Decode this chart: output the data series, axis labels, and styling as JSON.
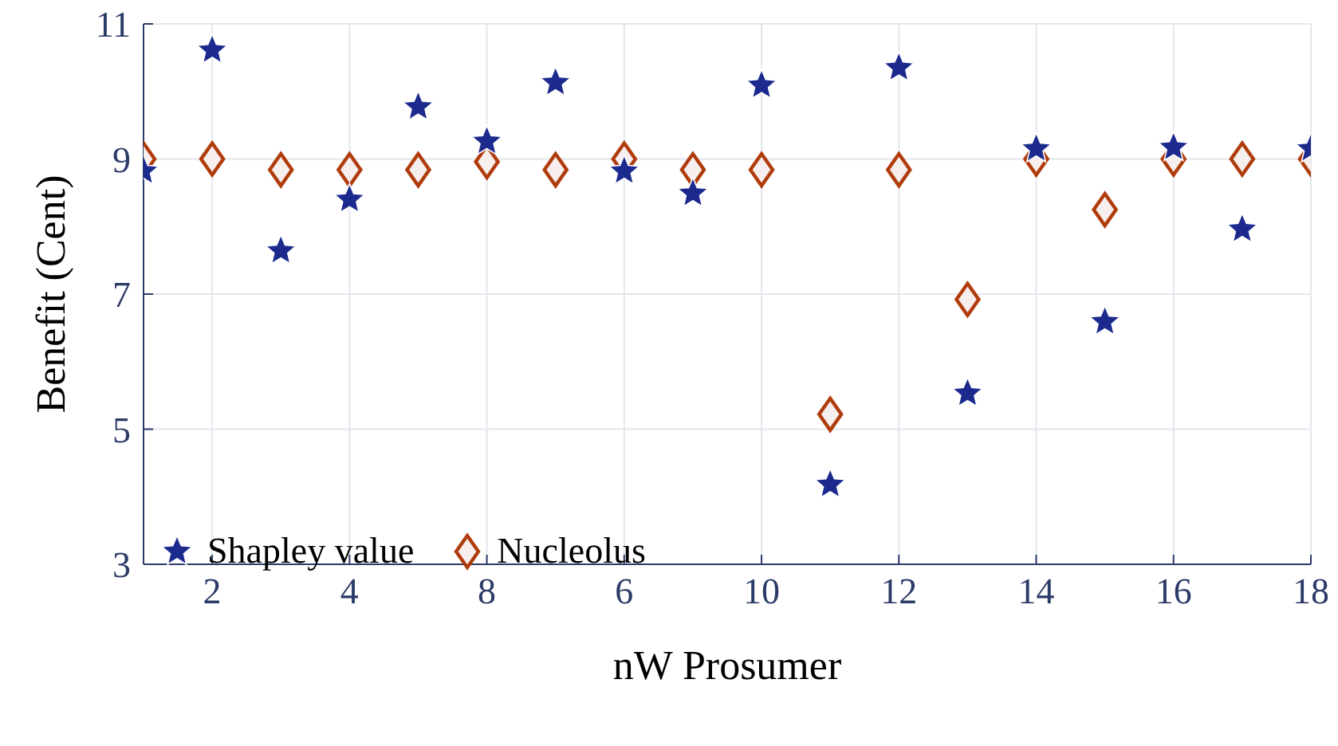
{
  "chart_data": {
    "type": "scatter",
    "xlabel": "nW Prosumer",
    "ylabel": "Benefit (Cent)",
    "categories": [
      null,
      "2",
      null,
      "4",
      null,
      "8",
      null,
      "6",
      null,
      "10",
      null,
      "12",
      null,
      "14",
      null,
      "16",
      null,
      "18"
    ],
    "series": [
      {
        "name": "Shapley value",
        "color": "#1c2a8e",
        "marker": "star",
        "values": [
          8.82,
          10.61,
          7.64,
          8.4,
          9.77,
          9.26,
          10.13,
          8.82,
          8.49,
          10.09,
          4.18,
          10.35,
          5.53,
          9.15,
          6.59,
          9.17,
          7.96,
          9.15
        ]
      },
      {
        "name": "Nucleolus",
        "color": "#b03c0c",
        "marker": "diamond",
        "values": [
          9.0,
          9.0,
          8.84,
          8.84,
          8.84,
          8.96,
          8.84,
          9.0,
          8.84,
          8.84,
          5.22,
          8.84,
          6.92,
          9.0,
          8.25,
          9.0,
          9.0,
          9.0
        ]
      }
    ],
    "ylim": [
      3,
      11
    ],
    "yticks": [
      3,
      5,
      7,
      9,
      11
    ],
    "grid": true,
    "legend": "bottom left"
  }
}
